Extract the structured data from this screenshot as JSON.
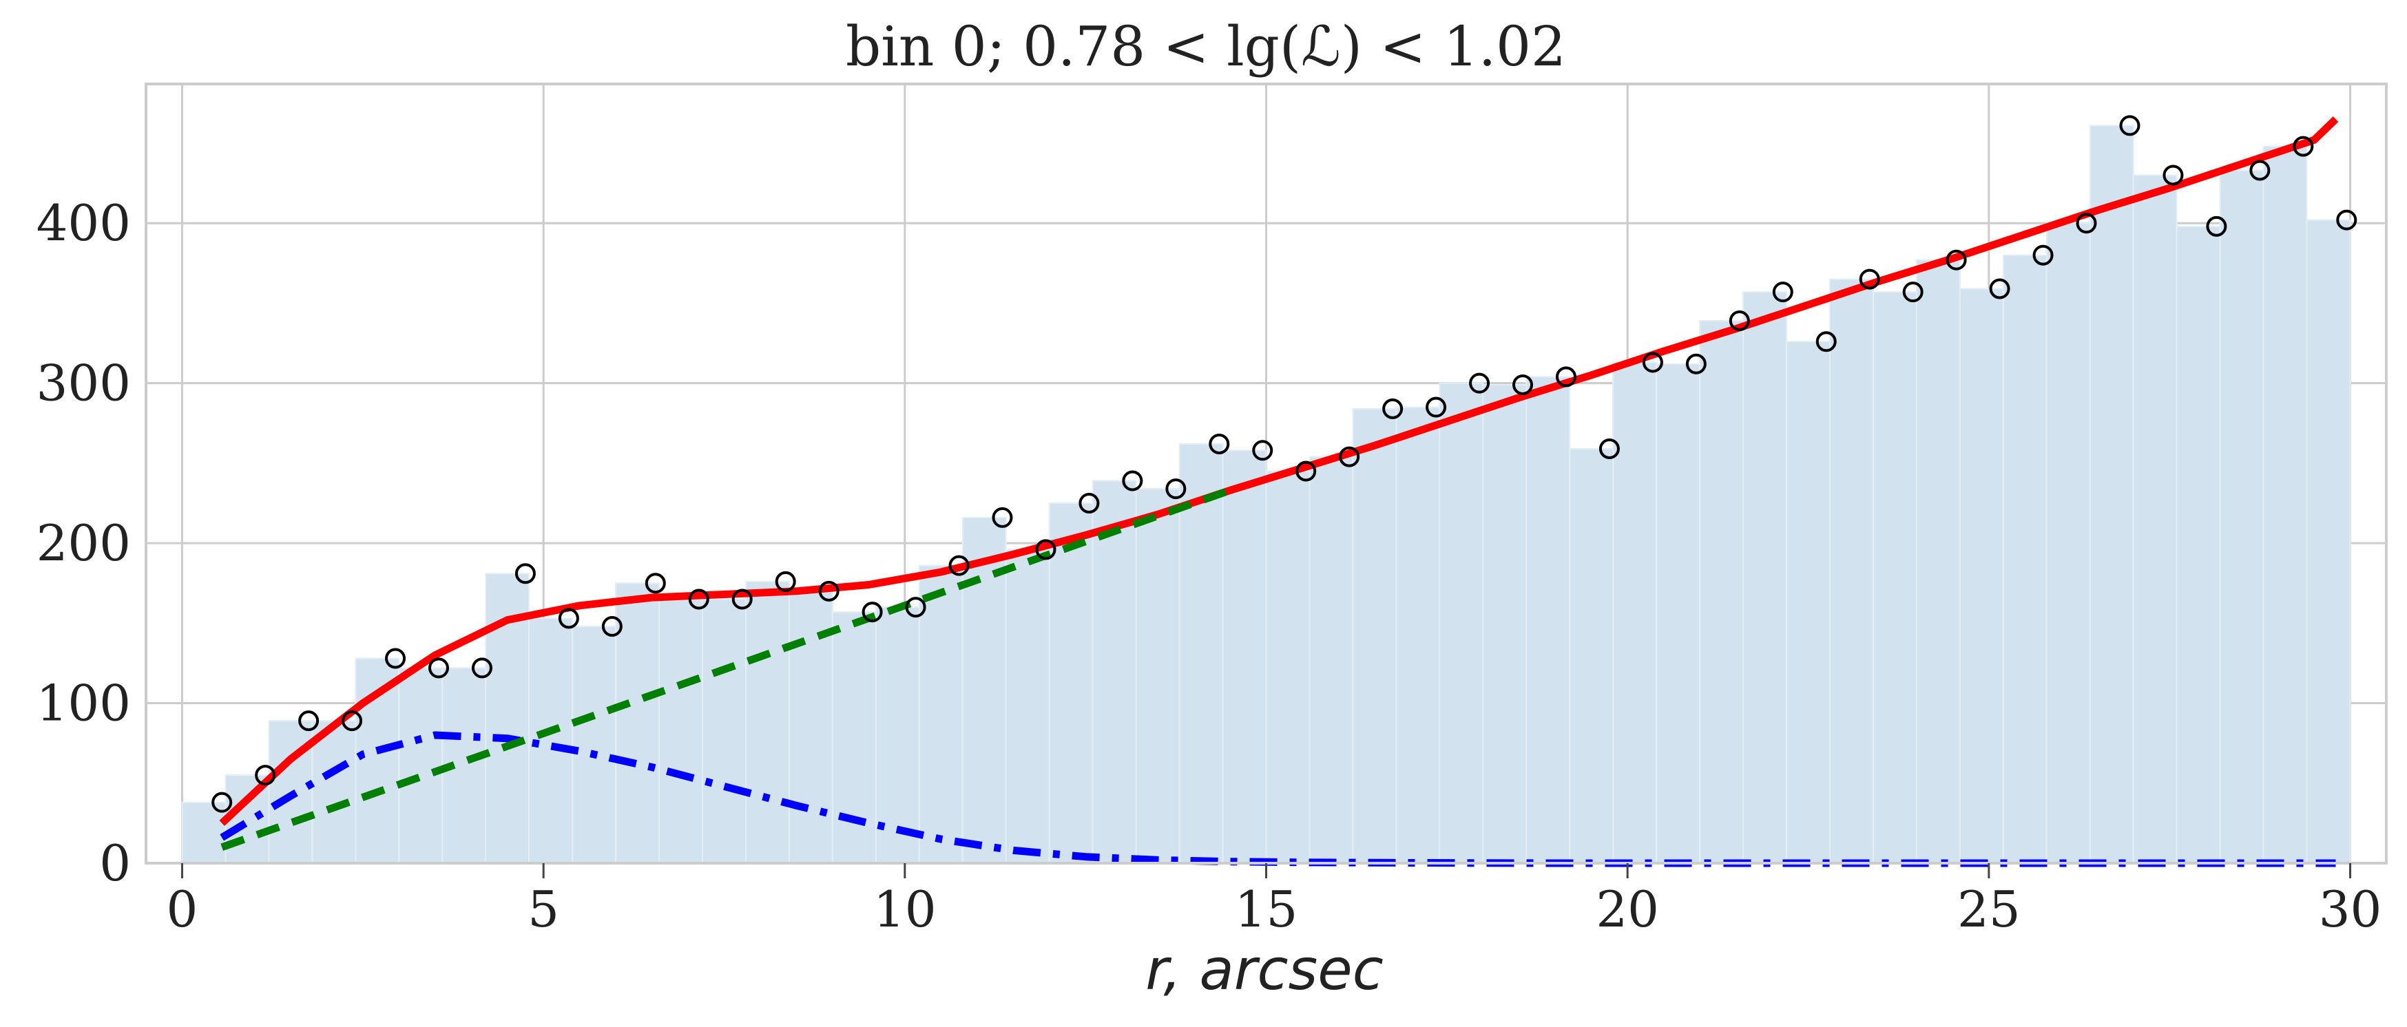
{
  "chart_data": {
    "type": "bar",
    "title": "bin 0; 0.78 < lg(ℒ) < 1.02",
    "xlabel": "r, arcsec",
    "ylabel": "",
    "xlim": [
      -0.5,
      30.5
    ],
    "ylim": [
      0,
      487
    ],
    "xticks": [
      0,
      5,
      10,
      15,
      20,
      25,
      30
    ],
    "yticks": [
      0,
      100,
      200,
      300,
      400
    ],
    "grid": true,
    "bin_width": 0.6,
    "histogram": {
      "color": "#d2e3ef",
      "x": [
        0.6,
        1.2,
        1.8,
        2.4,
        3.0,
        3.6,
        4.2,
        4.8,
        5.4,
        6.0,
        6.6,
        7.2,
        7.8,
        8.4,
        9.0,
        9.6,
        10.2,
        10.8,
        11.4,
        12.0,
        12.6,
        13.2,
        13.8,
        14.4,
        15.0,
        15.6,
        16.2,
        16.8,
        17.4,
        18.0,
        18.6,
        19.2,
        19.8,
        20.4,
        21.0,
        21.6,
        22.2,
        22.8,
        23.4,
        24.0,
        24.6,
        25.2,
        25.8,
        26.4,
        27.0,
        27.6,
        28.2,
        28.8,
        29.4,
        30.0
      ],
      "values": [
        38,
        55,
        89,
        89,
        128,
        122,
        122,
        181,
        153,
        148,
        175,
        165,
        165,
        176,
        170,
        157,
        160,
        186,
        216,
        196,
        225,
        239,
        234,
        262,
        258,
        245,
        254,
        284,
        285,
        300,
        299,
        304,
        259,
        313,
        312,
        339,
        357,
        326,
        365,
        357,
        377,
        359,
        380,
        400,
        461,
        430,
        398,
        433,
        448,
        402
      ]
    },
    "series": [
      {
        "type": "scatter",
        "marker": "open-circle",
        "color": "#000000",
        "x": [
          0.55,
          1.15,
          1.75,
          2.35,
          2.95,
          3.55,
          4.15,
          4.75,
          5.35,
          5.95,
          6.55,
          7.15,
          7.75,
          8.35,
          8.95,
          9.55,
          10.15,
          10.75,
          11.35,
          11.95,
          12.55,
          13.15,
          13.75,
          14.35,
          14.95,
          15.55,
          16.15,
          16.75,
          17.35,
          17.95,
          18.55,
          19.15,
          19.75,
          20.35,
          20.95,
          21.55,
          22.15,
          22.75,
          23.35,
          23.95,
          24.55,
          25.15,
          25.75,
          26.35,
          26.95,
          27.55,
          28.15,
          28.75,
          29.35,
          29.95
        ],
        "values": [
          38,
          55,
          89,
          89,
          128,
          122,
          122,
          181,
          153,
          148,
          175,
          165,
          165,
          176,
          170,
          157,
          160,
          186,
          216,
          196,
          225,
          239,
          234,
          262,
          258,
          245,
          254,
          284,
          285,
          300,
          299,
          304,
          259,
          313,
          312,
          339,
          357,
          326,
          365,
          357,
          377,
          359,
          380,
          400,
          461,
          430,
          398,
          433,
          448,
          402
        ]
      },
      {
        "type": "line",
        "style": "solid",
        "color": "#ff0000",
        "x": [
          0.55,
          1.5,
          2.5,
          3.5,
          4.5,
          5.5,
          6.5,
          7.5,
          8.5,
          9.5,
          10.5,
          11.5,
          12.5,
          13.5,
          14.5,
          15.5,
          16.5,
          17.5,
          18.5,
          19.5,
          20.5,
          21.5,
          22.5,
          23.5,
          24.5,
          25.5,
          26.5,
          27.5,
          28.5,
          29.5,
          29.8
        ],
        "values": [
          25,
          65,
          100,
          130,
          152,
          161,
          166,
          168,
          170,
          174,
          182,
          193,
          205,
          218,
          233,
          247,
          261,
          276,
          291,
          305,
          320,
          334,
          349,
          364,
          378,
          393,
          408,
          422,
          437,
          452,
          465
        ]
      },
      {
        "type": "line",
        "style": "dash-dot",
        "color": "#0000ff",
        "x": [
          0.55,
          1.5,
          2.5,
          3.5,
          4.5,
          5.5,
          6.5,
          7.5,
          8.5,
          9.5,
          10.5,
          11.5,
          12.5,
          13.5,
          14.5,
          15.5,
          17,
          19,
          22,
          25,
          28,
          29.8
        ],
        "values": [
          16,
          42,
          68,
          80,
          78,
          70,
          60,
          48,
          36,
          25,
          15,
          8,
          4,
          2,
          1,
          0.5,
          0.2,
          0,
          0,
          0,
          0,
          0
        ]
      },
      {
        "type": "line",
        "style": "dashed",
        "color": "#007f00",
        "x": [
          0.55,
          14.5
        ],
        "values": [
          10,
          233
        ]
      }
    ]
  }
}
